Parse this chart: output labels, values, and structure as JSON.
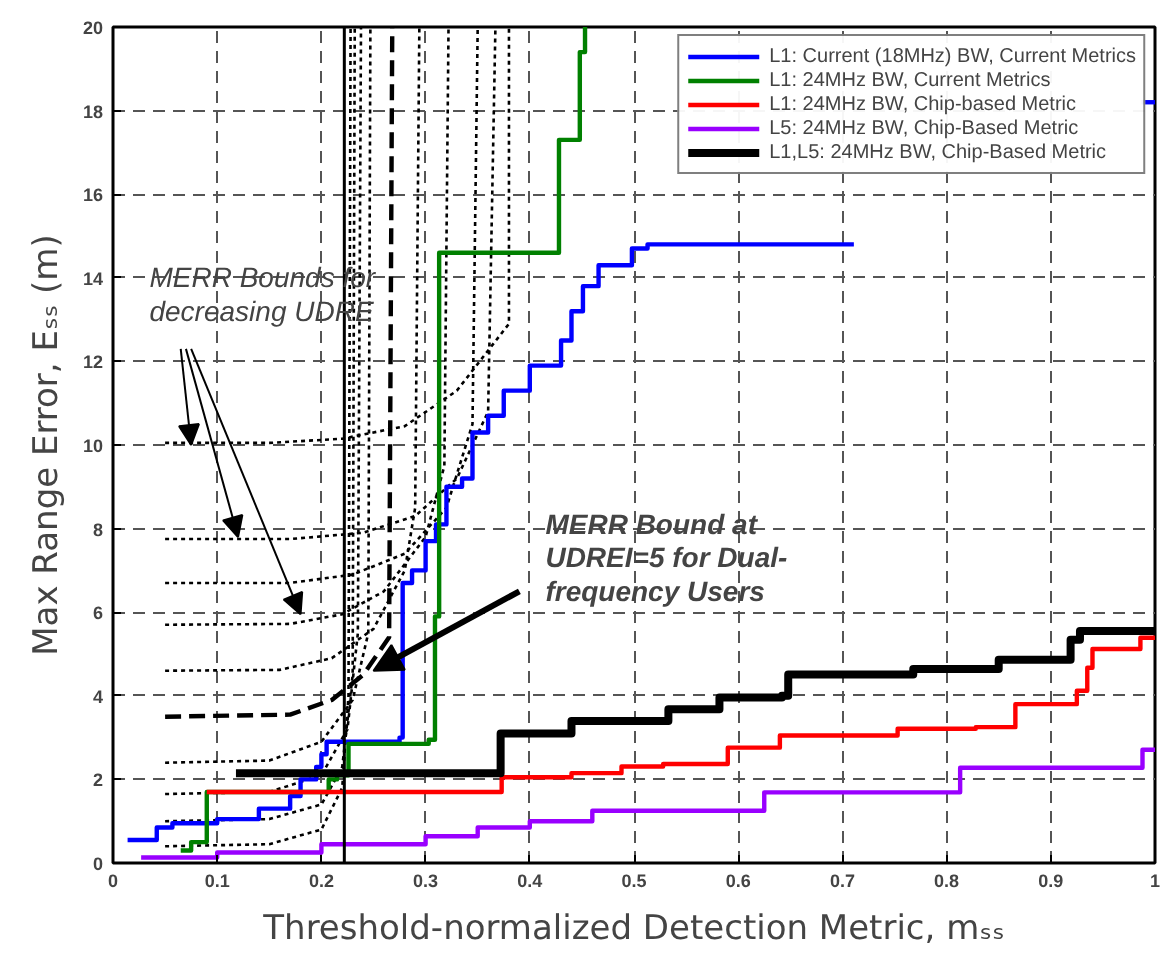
{
  "chart_data": {
    "type": "step",
    "xlabel": "Threshold-normalized Detection Metric, mₛₛ",
    "ylabel": "Max Range Error, Eₛₛ (m)",
    "xlim": [
      0,
      1
    ],
    "ylim": [
      0,
      20
    ],
    "xticks": [
      0,
      0.1,
      0.2,
      0.3,
      0.4,
      0.5,
      0.6,
      0.7,
      0.8,
      0.9,
      1
    ],
    "yticks": [
      0,
      2,
      4,
      6,
      8,
      10,
      12,
      14,
      16,
      18,
      20
    ],
    "grid": true,
    "legend": "top right",
    "series": [
      {
        "type": "line",
        "color": "#000000",
        "line_style": "dotted",
        "x": [
          0.05,
          0.15,
          0.22,
          0.28,
          0.33,
          0.38,
          0.38
        ],
        "values": [
          10.05,
          10.05,
          10.15,
          10.45,
          11.3,
          12.9,
          20
        ]
      },
      {
        "type": "line",
        "color": "#000000",
        "line_style": "dotted",
        "x": [
          0.05,
          0.17,
          0.24,
          0.29,
          0.33,
          0.36,
          0.367
        ],
        "values": [
          7.75,
          7.75,
          7.9,
          8.3,
          9.2,
          10.8,
          20
        ]
      },
      {
        "type": "line",
        "color": "#000000",
        "line_style": "dotted",
        "x": [
          0.05,
          0.17,
          0.23,
          0.28,
          0.32,
          0.345,
          0.35
        ],
        "values": [
          6.7,
          6.7,
          6.9,
          7.4,
          8.5,
          10.5,
          20
        ]
      },
      {
        "type": "line",
        "color": "#000000",
        "line_style": "dotted",
        "x": [
          0.05,
          0.17,
          0.22,
          0.26,
          0.3,
          0.318,
          0.322
        ],
        "values": [
          5.7,
          5.72,
          5.95,
          6.5,
          7.8,
          9.5,
          20
        ]
      },
      {
        "type": "line",
        "color": "#000000",
        "line_style": "dotted",
        "x": [
          0.05,
          0.16,
          0.21,
          0.25,
          0.28,
          0.29,
          0.294
        ],
        "values": [
          4.6,
          4.62,
          4.9,
          5.6,
          7.0,
          8.5,
          20
        ]
      },
      {
        "type": "line",
        "color": "#000000",
        "line_style": "dashed",
        "x": [
          0.05,
          0.17,
          0.21,
          0.24,
          0.265,
          0.268
        ],
        "values": [
          3.5,
          3.55,
          3.9,
          4.5,
          5.4,
          20
        ]
      },
      {
        "type": "line",
        "color": "#000000",
        "line_style": "dotted",
        "x": [
          0.05,
          0.15,
          0.2,
          0.23,
          0.245,
          0.247
        ],
        "values": [
          2.4,
          2.45,
          2.9,
          3.9,
          5.5,
          20
        ]
      },
      {
        "type": "line",
        "color": "#000000",
        "line_style": "dotted",
        "x": [
          0.05,
          0.15,
          0.2,
          0.225,
          0.235,
          0.238
        ],
        "values": [
          1.65,
          1.7,
          2.1,
          3.2,
          5.5,
          20
        ]
      },
      {
        "type": "line",
        "color": "#000000",
        "line_style": "dotted",
        "x": [
          0.05,
          0.15,
          0.2,
          0.22,
          0.23,
          0.232
        ],
        "values": [
          1.0,
          1.05,
          1.4,
          2.3,
          4.5,
          20
        ]
      },
      {
        "type": "line",
        "color": "#000000",
        "line_style": "dotted",
        "x": [
          0.05,
          0.15,
          0.2,
          0.22,
          0.226,
          0.228
        ],
        "values": [
          0.4,
          0.45,
          0.8,
          1.8,
          4.0,
          20
        ]
      },
      {
        "name": "L1: Current (18MHz) BW, Current Metrics",
        "color": "#0000ff",
        "x": [
          0.014,
          0.042,
          0.057,
          0.1,
          0.14,
          0.17,
          0.18,
          0.195,
          0.2,
          0.205,
          0.275,
          0.278,
          0.287,
          0.3,
          0.31,
          0.32,
          0.335,
          0.345,
          0.36,
          0.375,
          0.4,
          0.43,
          0.44,
          0.451,
          0.466,
          0.498,
          0.513,
          0.711,
          0.712,
          0.987,
          1.0
        ],
        "values": [
          0.55,
          0.85,
          0.95,
          1.05,
          1.3,
          1.6,
          2.0,
          2.3,
          2.6,
          2.9,
          3.0,
          6.7,
          7.0,
          7.7,
          8.1,
          9.0,
          9.2,
          10.3,
          10.7,
          11.3,
          11.9,
          12.5,
          13.2,
          13.8,
          14.3,
          14.7,
          14.8,
          14.8,
          null,
          18.2,
          18.2
        ]
      },
      {
        "name": "L1: 24MHz BW, Current Metrics",
        "color": "#008000",
        "x": [
          0.065,
          0.075,
          0.09,
          0.207,
          0.215,
          0.226,
          0.303,
          0.309,
          0.313,
          0.428,
          0.448,
          0.453
        ],
        "values": [
          0.3,
          0.5,
          1.7,
          2.0,
          2.1,
          2.85,
          2.95,
          5.9,
          14.6,
          17.3,
          19.4,
          20
        ]
      },
      {
        "name": "L1: 24MHz BW, Chip-based Metric",
        "color": "#ff0000",
        "x": [
          0.09,
          0.373,
          0.44,
          0.488,
          0.528,
          0.59,
          0.64,
          0.753,
          0.828,
          0.866,
          0.925,
          0.935,
          0.94,
          0.986,
          1.0
        ],
        "values": [
          1.7,
          2.05,
          2.15,
          2.31,
          2.37,
          2.76,
          3.05,
          3.21,
          3.25,
          3.8,
          4.12,
          4.67,
          5.12,
          5.39,
          5.39
        ]
      },
      {
        "name": "L5: 24MHz BW, Chip-Based Metric",
        "color": "#9900ff",
        "x": [
          0.027,
          0.1,
          0.2,
          0.3,
          0.35,
          0.4,
          0.46,
          0.625,
          0.813,
          0.988,
          1.0
        ],
        "values": [
          0.13,
          0.25,
          0.45,
          0.64,
          0.85,
          1.0,
          1.25,
          1.69,
          2.28,
          2.71,
          2.71
        ]
      },
      {
        "name": "L1,L5: 24MHz BW, Chip-Based Metric",
        "color": "#000000",
        "x": [
          0.118,
          0.372,
          0.44,
          0.533,
          0.582,
          0.642,
          0.648,
          0.768,
          0.85,
          0.919,
          0.928,
          1.0
        ],
        "values": [
          2.15,
          3.1,
          3.4,
          3.68,
          3.96,
          4.0,
          4.51,
          4.64,
          4.86,
          5.34,
          5.55,
          5.55
        ]
      }
    ],
    "ref_lines": [
      {
        "axis": "x",
        "value": 0.222,
        "color": "#000000",
        "line_style": "solid"
      }
    ],
    "annotations": [
      {
        "text": "MERR Bounds for\ndecreasing UDRE",
        "x": 0.075,
        "y": 10.0
      },
      {
        "text": "MERR Bound at\nUDREI=5 for Dual-\nfrequency Users",
        "x": 0.25,
        "y": 4.6
      }
    ]
  }
}
